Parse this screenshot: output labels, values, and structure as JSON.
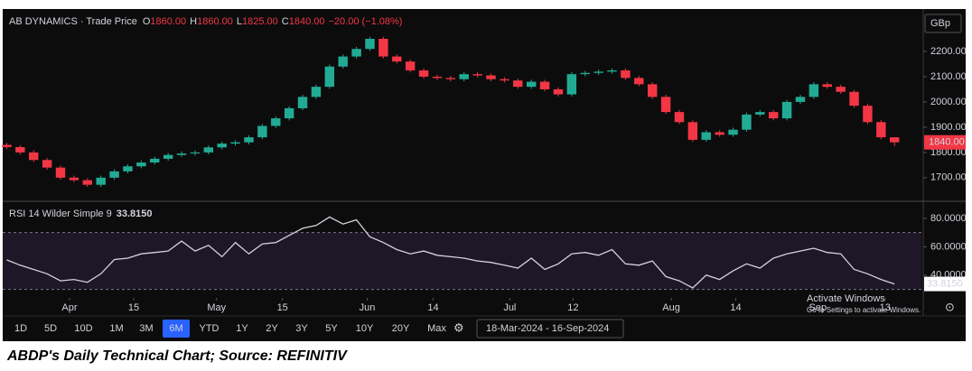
{
  "header": {
    "symbol": "AB DYNAMICS · Trade Price",
    "ohlc": [
      {
        "key": "O",
        "value": "1860.00"
      },
      {
        "key": "H",
        "value": "1860.00"
      },
      {
        "key": "L",
        "value": "1825.00"
      },
      {
        "key": "C",
        "value": "1840.00"
      }
    ],
    "change": "−20.00 (−1.08%)",
    "currency": "GBp"
  },
  "chart_data": [
    {
      "type": "candlestick",
      "up_color": "#22ab94",
      "down_color": "#f23645",
      "xlim": [
        -0.5,
        68
      ],
      "ylim": [
        1610,
        2368
      ],
      "yticks": [
        {
          "value": 1700,
          "label": "1700.00"
        },
        {
          "value": 1800,
          "label": "1800.00"
        },
        {
          "value": 1900,
          "label": "1900.00"
        },
        {
          "value": 2000,
          "label": "2000.00"
        },
        {
          "value": 2100,
          "label": "2100.00"
        },
        {
          "value": 2200,
          "label": "2200.00"
        }
      ],
      "last_label": "1840.00",
      "open": [
        1830,
        1821,
        1800,
        1770,
        1740,
        1700,
        1690,
        1672,
        1700,
        1725,
        1745,
        1760,
        1775,
        1790,
        1796,
        1800,
        1820,
        1835,
        1840,
        1860,
        1905,
        1935,
        1975,
        2020,
        2060,
        2140,
        2180,
        2210,
        2250,
        2180,
        2160,
        2125,
        2100,
        2095,
        2090,
        2110,
        2105,
        2090,
        2085,
        2060,
        2080,
        2050,
        2030,
        2110,
        2115,
        2120,
        2125,
        2095,
        2070,
        2020,
        1960,
        1920,
        1850,
        1880,
        1870,
        1890,
        1950,
        1960,
        1935,
        2000,
        2020,
        2070,
        2060,
        2040,
        1985,
        1920,
        1860
      ],
      "high": [
        1838,
        1829,
        1808,
        1778,
        1748,
        1708,
        1698,
        1708,
        1733,
        1753,
        1768,
        1783,
        1798,
        1804,
        1808,
        1828,
        1843,
        1848,
        1868,
        1913,
        1943,
        1983,
        2028,
        2068,
        2148,
        2188,
        2218,
        2258,
        2258,
        2188,
        2168,
        2133,
        2108,
        2103,
        2118,
        2118,
        2113,
        2098,
        2093,
        2088,
        2088,
        2058,
        2118,
        2123,
        2128,
        2133,
        2133,
        2103,
        2078,
        2028,
        1968,
        1928,
        1888,
        1888,
        1898,
        1958,
        1968,
        1968,
        2008,
        2028,
        2078,
        2078,
        2068,
        2048,
        1993,
        1928,
        1860
      ],
      "low": [
        1813,
        1792,
        1762,
        1732,
        1692,
        1682,
        1664,
        1664,
        1692,
        1717,
        1737,
        1752,
        1767,
        1782,
        1788,
        1792,
        1812,
        1827,
        1832,
        1852,
        1897,
        1927,
        1967,
        2012,
        2052,
        2132,
        2172,
        2202,
        2172,
        2152,
        2117,
        2092,
        2087,
        2082,
        2082,
        2097,
        2082,
        2077,
        2052,
        2052,
        2042,
        2022,
        2022,
        2102,
        2107,
        2112,
        2087,
        2062,
        2012,
        1952,
        1912,
        1842,
        1842,
        1862,
        1862,
        1882,
        1942,
        1927,
        1927,
        1992,
        2012,
        2052,
        2032,
        1977,
        1912,
        1852,
        1825
      ],
      "close": [
        1821,
        1800,
        1770,
        1740,
        1700,
        1690,
        1672,
        1700,
        1725,
        1745,
        1760,
        1775,
        1790,
        1796,
        1800,
        1820,
        1835,
        1840,
        1860,
        1905,
        1935,
        1975,
        2020,
        2060,
        2140,
        2180,
        2210,
        2250,
        2180,
        2160,
        2125,
        2100,
        2095,
        2090,
        2110,
        2105,
        2090,
        2085,
        2060,
        2080,
        2050,
        2030,
        2110,
        2115,
        2120,
        2125,
        2095,
        2070,
        2020,
        1960,
        1920,
        1850,
        1880,
        1870,
        1890,
        1950,
        1960,
        1935,
        2000,
        2020,
        2070,
        2060,
        2040,
        1985,
        1920,
        1860,
        1840
      ]
    },
    {
      "type": "line",
      "name": "RSI 14 Wilder Simple 9",
      "value_label": "33.8150",
      "color": "#d1d4dc",
      "band_color": "#7e57c2",
      "bands": [
        30,
        70
      ],
      "xlim": [
        -0.5,
        68
      ],
      "ylim": [
        24,
        91.4
      ],
      "yticks": [
        {
          "value": 40,
          "label": "40.0000"
        },
        {
          "value": 60,
          "label": "60.0000"
        },
        {
          "value": 80,
          "label": "80.0000"
        }
      ],
      "xticks": [
        {
          "value": 4.67,
          "label": "Apr"
        },
        {
          "value": 9.44,
          "label": "15"
        },
        {
          "value": 15.6,
          "label": "May"
        },
        {
          "value": 20.5,
          "label": "15"
        },
        {
          "value": 26.8,
          "label": "Jun"
        },
        {
          "value": 31.7,
          "label": "14"
        },
        {
          "value": 37.4,
          "label": "Jul"
        },
        {
          "value": 42.1,
          "label": "12"
        },
        {
          "value": 49.4,
          "label": "Aug"
        },
        {
          "value": 54.2,
          "label": "14"
        },
        {
          "value": 60.3,
          "label": "Sep"
        },
        {
          "value": 65.3,
          "label": "13"
        }
      ],
      "values": [
        50.8,
        47,
        44,
        41,
        36,
        37,
        35,
        41,
        51,
        52,
        55,
        56,
        57,
        64,
        57,
        61,
        53,
        63,
        55,
        62,
        63,
        68,
        73,
        75,
        81,
        76,
        79,
        67,
        63,
        58,
        55,
        57,
        54,
        53,
        52,
        50,
        49,
        47,
        45,
        52,
        44,
        48,
        55,
        56,
        54,
        58,
        48,
        47,
        50,
        39,
        36,
        31,
        40,
        37,
        43,
        48,
        45,
        52,
        55,
        57,
        59,
        56,
        55,
        44,
        41,
        37,
        33.815
      ]
    }
  ],
  "toolbar": {
    "ranges": [
      "1D",
      "5D",
      "10D",
      "1M",
      "3M",
      "6M",
      "YTD",
      "1Y",
      "2Y",
      "3Y",
      "5Y",
      "10Y",
      "20Y",
      "Max"
    ],
    "active": "6M",
    "date_range": "18-Mar-2024 - 16-Sep-2024"
  },
  "watermark": [
    "Activate Windows",
    "Go to Settings to activate Windows."
  ],
  "caption": "ABDP's Daily Technical Chart; Source: REFINITIV"
}
